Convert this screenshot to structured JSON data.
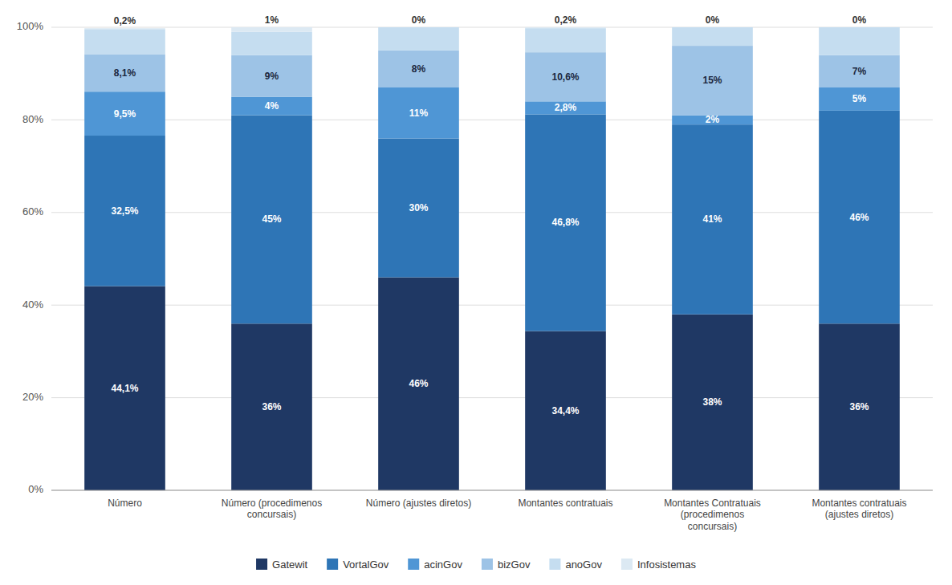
{
  "chart_data": {
    "type": "bar",
    "stacked": true,
    "grid": true,
    "legend": "bottom",
    "data_labels": true,
    "categories": [
      "Número",
      "Número (procedimenos\nconcursais)",
      "Número (ajustes diretos)",
      "Montantes contratuais",
      "Montantes Contratuais\n(procedimenos\nconcursais)",
      "Montantes contratuais\n(ajustes diretos)"
    ],
    "series": [
      {
        "name": "Gatewit",
        "color": "#1f3864",
        "values": [
          44.1,
          36.0,
          46.0,
          34.4,
          38.0,
          36.0
        ],
        "value_labels": [
          "44,1%",
          "36%",
          "46%",
          "34,4%",
          "38%",
          "36%"
        ]
      },
      {
        "name": "VortalGov",
        "color": "#2e75b6",
        "values": [
          32.5,
          45.0,
          30.0,
          46.8,
          41.0,
          46.0
        ],
        "value_labels": [
          "32,5%",
          "45%",
          "30%",
          "46,8%",
          "41%",
          "46%"
        ]
      },
      {
        "name": "acinGov",
        "color": "#4f96d5",
        "values": [
          9.5,
          4.0,
          11.0,
          2.8,
          2.0,
          5.0
        ],
        "value_labels": [
          "9,5%",
          "4%",
          "11%",
          "2,8%",
          "2%",
          "5%"
        ]
      },
      {
        "name": "bizGov",
        "color": "#9dc3e6",
        "values": [
          8.1,
          9.0,
          8.0,
          10.6,
          15.0,
          7.0
        ],
        "value_labels": [
          "8,1%",
          "9%",
          "8%",
          "10,6%",
          "15%",
          "7%"
        ]
      },
      {
        "name": "anoGov",
        "color": "#c5ddf0",
        "values": [
          5.4,
          5.0,
          5.0,
          5.2,
          4.0,
          6.0
        ]
      },
      {
        "name": "Infosistemas",
        "color": "#dce9f3",
        "values": [
          0.2,
          1.0,
          0.0,
          0.2,
          0.0,
          0.0
        ],
        "value_labels": [
          "0,2%",
          "1%",
          "0%",
          "0,2%",
          "0%",
          "0%"
        ]
      }
    ],
    "ylim": [
      0,
      100
    ],
    "yticks": [
      {
        "value": 0,
        "label": "0%"
      },
      {
        "value": 20,
        "label": "20%"
      },
      {
        "value": 40,
        "label": "40%"
      },
      {
        "value": 60,
        "label": "60%"
      },
      {
        "value": 80,
        "label": "80%"
      },
      {
        "value": 100,
        "label": "100%"
      }
    ]
  }
}
